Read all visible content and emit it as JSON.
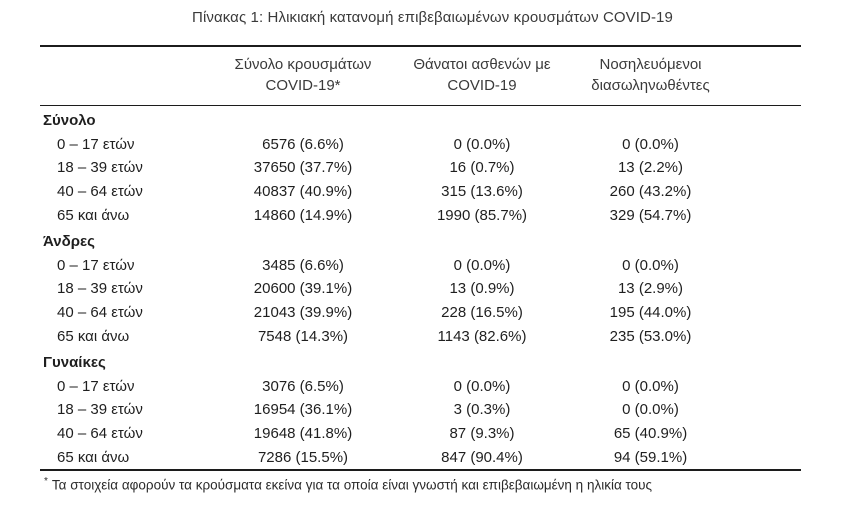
{
  "title": "Πίνακας 1: Ηλικιακή κατανομή επιβεβαιωμένων κρουσμάτων COVID-19",
  "table": {
    "col_headers": [
      {
        "line1": "Σύνολο κρουσμάτων",
        "line2": "COVID-19*"
      },
      {
        "line1": "Θάνατοι ασθενών με",
        "line2": "COVID-19"
      },
      {
        "line1": "Νοσηλευόμενοι",
        "line2": "διασωληνωθέντες"
      }
    ],
    "sections": [
      {
        "label": "Σύνολο",
        "rows": [
          {
            "age": "0 – 17 ετών",
            "cases": "6576 (6.6%)",
            "deaths": "0 (0.0%)",
            "intubated": "0 (0.0%)"
          },
          {
            "age": "18 – 39 ετών",
            "cases": "37650 (37.7%)",
            "deaths": "16 (0.7%)",
            "intubated": "13 (2.2%)"
          },
          {
            "age": "40 – 64 ετών",
            "cases": "40837 (40.9%)",
            "deaths": "315 (13.6%)",
            "intubated": "260 (43.2%)"
          },
          {
            "age": "65 και άνω",
            "cases": "14860 (14.9%)",
            "deaths": "1990 (85.7%)",
            "intubated": "329 (54.7%)"
          }
        ]
      },
      {
        "label": "Άνδρες",
        "rows": [
          {
            "age": "0 – 17 ετών",
            "cases": "3485 (6.6%)",
            "deaths": "0 (0.0%)",
            "intubated": "0 (0.0%)"
          },
          {
            "age": "18 – 39 ετών",
            "cases": "20600 (39.1%)",
            "deaths": "13 (0.9%)",
            "intubated": "13 (2.9%)"
          },
          {
            "age": "40 – 64 ετών",
            "cases": "21043 (39.9%)",
            "deaths": "228 (16.5%)",
            "intubated": "195 (44.0%)"
          },
          {
            "age": "65 και άνω",
            "cases": "7548 (14.3%)",
            "deaths": "1143 (82.6%)",
            "intubated": "235 (53.0%)"
          }
        ]
      },
      {
        "label": "Γυναίκες",
        "rows": [
          {
            "age": "0 – 17 ετών",
            "cases": "3076 (6.5%)",
            "deaths": "0 (0.0%)",
            "intubated": "0 (0.0%)"
          },
          {
            "age": "18 – 39 ετών",
            "cases": "16954 (36.1%)",
            "deaths": "3 (0.3%)",
            "intubated": "0 (0.0%)"
          },
          {
            "age": "40 – 64 ετών",
            "cases": "19648 (41.8%)",
            "deaths": "87 (9.3%)",
            "intubated": "65 (40.9%)"
          },
          {
            "age": "65 και άνω",
            "cases": "7286 (15.5%)",
            "deaths": "847 (90.4%)",
            "intubated": "94 (59.1%)"
          }
        ]
      }
    ]
  },
  "footnote": {
    "marker": "*",
    "text": "Τα στοιχεία αφορούν τα κρούσματα εκείνα για τα οποία είναι γνωστή και επιβεβαιωμένη η ηλικία τους"
  }
}
